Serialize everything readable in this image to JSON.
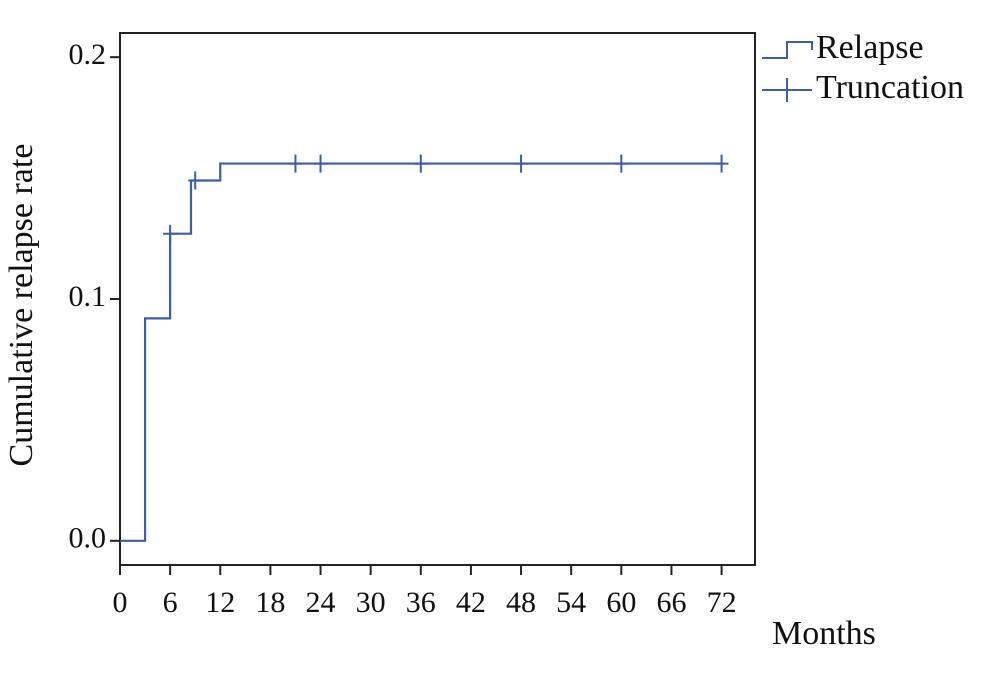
{
  "chart_data": {
    "type": "step",
    "y_label": "Cumulative relapse rate",
    "x_label": "Months",
    "xlim": [
      0,
      76
    ],
    "ylim": [
      -0.01,
      0.21
    ],
    "xticks": [
      0,
      6,
      12,
      18,
      24,
      30,
      36,
      42,
      48,
      54,
      60,
      66,
      72
    ],
    "yticks": [
      {
        "value": 0,
        "label": "0.0"
      },
      0.1,
      0.2
    ],
    "series": [
      {
        "name": "Relapse",
        "color": "#3a5ea8",
        "x": [
          0,
          3,
          6,
          8.5,
          12,
          72
        ],
        "values": [
          0,
          0.092,
          0.127,
          0.149,
          0.156,
          0.156
        ]
      },
      {
        "name": "Truncation",
        "color": "#3a5ea8",
        "marker": "cross",
        "x": [
          6,
          9,
          21,
          24,
          36,
          48,
          60,
          72
        ],
        "values": [
          0.127,
          0.149,
          0.156,
          0.156,
          0.156,
          0.156,
          0.156,
          0.156
        ]
      }
    ]
  }
}
